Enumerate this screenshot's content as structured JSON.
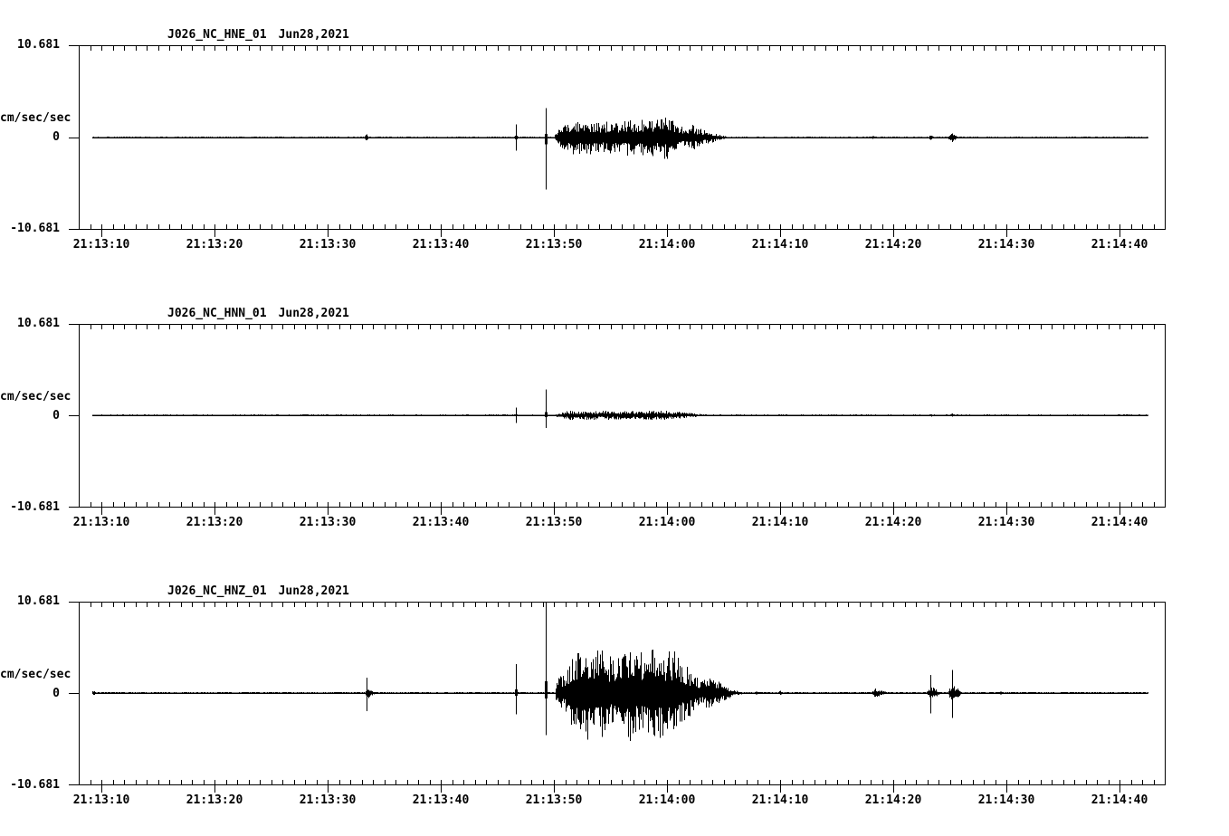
{
  "display": {
    "background_color": "#ffffff",
    "trace_color": "#000000",
    "station": "J026",
    "network": "NC",
    "channels": [
      "HNE",
      "HNN",
      "HNZ"
    ],
    "date": "Jun28,2021"
  },
  "chart_data": {
    "type": "line",
    "subtype": "seismogram",
    "grid": false,
    "legend": "none",
    "x_axis": {
      "time_start": "21:13:08",
      "time_end": "21:14:44",
      "minor_tick_interval_seconds": 1,
      "major_tick_interval_seconds": 10
    },
    "panels": [
      {
        "channel": "HNE",
        "title": "J026_NC_HNE_01",
        "date": "Jun28,2021",
        "ylabel": "cm/sec/sec",
        "y_max_label": "10.681",
        "y_zero_label": "0",
        "y_min_label": "-10.681",
        "ylim": [
          -10.681,
          10.681
        ],
        "x_tick_labels": [
          "21:13:10",
          "21:13:20",
          "21:13:30",
          "21:13:40",
          "21:13:50",
          "21:14:00",
          "21:14:10",
          "21:14:20",
          "21:14:30",
          "21:14:40"
        ],
        "trace": {
          "t0": 1.2,
          "t1": 94.5,
          "noise": 0.07,
          "blips": [
            {
              "t": 20.8,
              "amp": 0.12
            },
            {
              "t": 25.4,
              "amp": 0.42
            },
            {
              "t": 33.0,
              "amp": 0.1
            },
            {
              "t": 70.2,
              "amp": 0.2
            },
            {
              "t": 75.3,
              "amp": 0.38
            },
            {
              "t": 77.2,
              "amp": 0.55,
              "w": 0.5
            }
          ],
          "spikes": [
            {
              "t": 38.6,
              "up": 1.5,
              "down": 1.5
            },
            {
              "t": 41.3,
              "up": 3.4,
              "down": 6.0
            }
          ],
          "packets": [
            {
              "env": [
                [
                  42.0,
                  0.3
                ],
                [
                  42.4,
                  0.9
                ],
                [
                  43.0,
                  1.9
                ],
                [
                  43.8,
                  2.3
                ],
                [
                  44.6,
                  1.9
                ],
                [
                  45.4,
                  2.1
                ],
                [
                  46.2,
                  1.7
                ],
                [
                  47.0,
                  2.0
                ],
                [
                  47.8,
                  1.7
                ],
                [
                  48.6,
                  2.2
                ],
                [
                  49.4,
                  1.8
                ],
                [
                  50.2,
                  2.4
                ],
                [
                  51.0,
                  2.0
                ],
                [
                  51.8,
                  2.6
                ],
                [
                  52.6,
                  2.0
                ],
                [
                  53.4,
                  1.3
                ],
                [
                  54.2,
                  1.5
                ],
                [
                  55.0,
                  1.0
                ],
                [
                  55.8,
                  0.7
                ],
                [
                  56.6,
                  0.35
                ],
                [
                  57.3,
                  0.1
                ]
              ]
            }
          ]
        }
      },
      {
        "channel": "HNN",
        "title": "J026_NC_HNN_01",
        "date": "Jun28,2021",
        "ylabel": "cm/sec/sec",
        "y_max_label": "10.681",
        "y_zero_label": "0",
        "y_min_label": "-10.681",
        "ylim": [
          -10.681,
          10.681
        ],
        "x_tick_labels": [
          "21:13:10",
          "21:13:20",
          "21:13:30",
          "21:13:40",
          "21:13:50",
          "21:14:00",
          "21:14:10",
          "21:14:20",
          "21:14:30",
          "21:14:40"
        ],
        "trace": {
          "t0": 1.2,
          "t1": 94.5,
          "noise": 0.06,
          "blips": [
            {
              "t": 75.3,
              "amp": 0.18
            },
            {
              "t": 77.2,
              "amp": 0.28
            }
          ],
          "spikes": [
            {
              "t": 38.6,
              "up": 0.9,
              "down": 0.9
            },
            {
              "t": 41.3,
              "up": 3.0,
              "down": 1.5
            }
          ],
          "packets": [
            {
              "env": [
                [
                  42.1,
                  0.15
                ],
                [
                  42.6,
                  0.35
                ],
                [
                  43.4,
                  0.55
                ],
                [
                  44.2,
                  0.45
                ],
                [
                  45.0,
                  0.6
                ],
                [
                  46.0,
                  0.5
                ],
                [
                  47.0,
                  0.6
                ],
                [
                  48.0,
                  0.5
                ],
                [
                  49.0,
                  0.6
                ],
                [
                  50.0,
                  0.55
                ],
                [
                  51.0,
                  0.6
                ],
                [
                  52.0,
                  0.5
                ],
                [
                  52.8,
                  0.45
                ],
                [
                  53.6,
                  0.35
                ],
                [
                  54.4,
                  0.22
                ],
                [
                  55.2,
                  0.12
                ],
                [
                  55.9,
                  0.06
                ]
              ]
            }
          ]
        }
      },
      {
        "channel": "HNZ",
        "title": "J026_NC_HNZ_01",
        "date": "Jun28,2021",
        "ylabel": "cm/sec/sec",
        "y_max_label": "10.681",
        "y_zero_label": "0",
        "y_min_label": "-10.681",
        "ylim": [
          -10.681,
          10.681
        ],
        "x_tick_labels": [
          "21:13:10",
          "21:13:20",
          "21:13:30",
          "21:13:40",
          "21:13:50",
          "21:14:00",
          "21:14:10",
          "21:14:20",
          "21:14:30",
          "21:14:40"
        ],
        "trace": {
          "t0": 1.2,
          "t1": 94.5,
          "noise": 0.08,
          "blips": [
            {
              "t": 1.3,
              "amp": 0.28,
              "w": 0.4
            },
            {
              "t": 5.2,
              "amp": 0.1
            },
            {
              "t": 13.4,
              "amp": 0.14
            },
            {
              "t": 17.8,
              "amp": 0.1
            },
            {
              "t": 29.5,
              "amp": 0.1
            },
            {
              "t": 33.4,
              "amp": 0.12
            },
            {
              "t": 36.8,
              "amp": 0.14
            },
            {
              "t": 59.9,
              "amp": 0.22
            },
            {
              "t": 62.0,
              "amp": 0.3
            },
            {
              "t": 66.5,
              "amp": 0.12
            },
            {
              "t": 81.5,
              "amp": 0.25
            },
            {
              "t": 85.0,
              "amp": 0.1
            }
          ],
          "spikes": [
            {
              "t": 25.4,
              "up": 1.8,
              "down": 2.1,
              "tail": 0.8
            },
            {
              "t": 38.6,
              "up": 3.4,
              "down": 2.5
            },
            {
              "t": 41.3,
              "up": 10.7,
              "down": 4.9
            },
            {
              "t": 75.3,
              "up": 2.1,
              "down": 2.4
            },
            {
              "t": 77.2,
              "up": 2.7,
              "down": 2.9
            }
          ],
          "packets": [
            {
              "env": [
                [
                  42.1,
                  1.4
                ],
                [
                  42.5,
                  2.0
                ],
                [
                  43.0,
                  2.5
                ],
                [
                  43.8,
                  5.0
                ],
                [
                  44.6,
                  6.2
                ],
                [
                  45.4,
                  4.6
                ],
                [
                  46.2,
                  5.5
                ],
                [
                  47.0,
                  4.3
                ],
                [
                  47.8,
                  4.8
                ],
                [
                  48.6,
                  6.0
                ],
                [
                  49.4,
                  4.7
                ],
                [
                  50.2,
                  5.3
                ],
                [
                  51.0,
                  6.2
                ],
                [
                  51.8,
                  4.7
                ],
                [
                  52.6,
                  5.1
                ],
                [
                  53.4,
                  3.6
                ],
                [
                  54.2,
                  2.5
                ],
                [
                  55.0,
                  1.5
                ],
                [
                  55.6,
                  1.9
                ],
                [
                  56.3,
                  1.7
                ],
                [
                  57.0,
                  0.9
                ],
                [
                  57.8,
                  0.4
                ],
                [
                  58.6,
                  0.12
                ]
              ]
            },
            {
              "env": [
                [
                  70.0,
                  0.08
                ],
                [
                  70.4,
                  0.55
                ],
                [
                  70.9,
                  0.42
                ],
                [
                  71.4,
                  0.08
                ]
              ]
            },
            {
              "env": [
                [
                  74.9,
                  0.12
                ],
                [
                  75.2,
                  0.85
                ],
                [
                  75.6,
                  0.6
                ],
                [
                  76.1,
                  0.15
                ]
              ]
            },
            {
              "env": [
                [
                  76.8,
                  0.18
                ],
                [
                  77.1,
                  1.0
                ],
                [
                  77.5,
                  0.85
                ],
                [
                  78.0,
                  0.2
                ]
              ]
            }
          ]
        }
      }
    ]
  }
}
